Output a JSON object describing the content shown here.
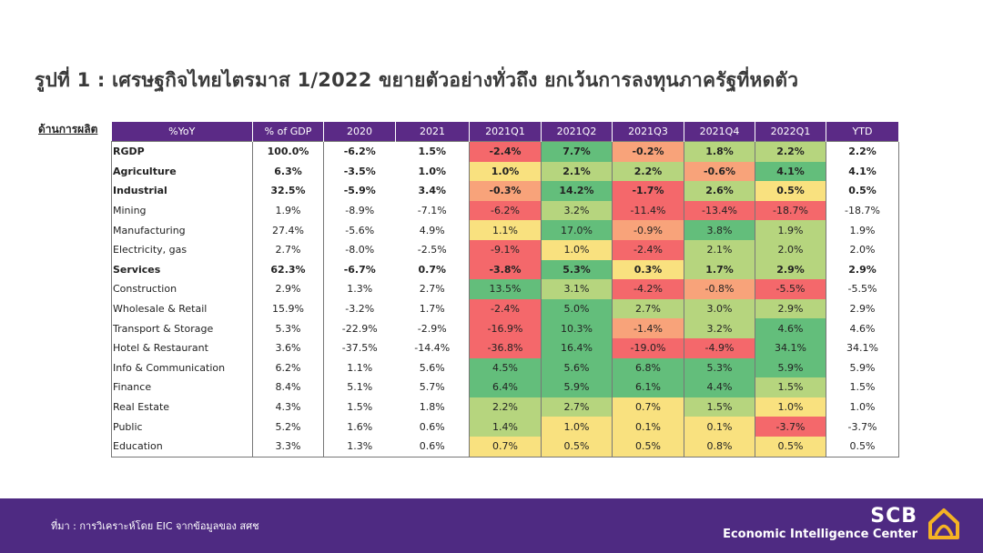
{
  "title": "รูปที่ 1 : เศรษฐกิจไทยไตรมาส 1/2022 ขยายตัวอย่างทั่วถึง ยกเว้นการลงทุนภาครัฐที่หดตัว",
  "side_label": "ด้านการผลิต",
  "columns": [
    "%YoY",
    "% of GDP",
    "2020",
    "2021",
    "2021Q1",
    "2021Q2",
    "2021Q3",
    "2021Q4",
    "2022Q1",
    "YTD"
  ],
  "rows": [
    {
      "label": "RGDP",
      "bold": true,
      "gdp": "100.0%",
      "y2020": "-6.2%",
      "y2021": "1.5%",
      "q": [
        "-2.4%",
        "7.7%",
        "-0.2%",
        "1.8%",
        "2.2%"
      ],
      "ytd": "2.2%"
    },
    {
      "label": "Agriculture",
      "bold": true,
      "gdp": "6.3%",
      "y2020": "-3.5%",
      "y2021": "1.0%",
      "q": [
        "1.0%",
        "2.1%",
        "2.2%",
        "-0.6%",
        "4.1%"
      ],
      "ytd": "4.1%"
    },
    {
      "label": "Industrial",
      "bold": true,
      "gdp": "32.5%",
      "y2020": "-5.9%",
      "y2021": "3.4%",
      "q": [
        "-0.3%",
        "14.2%",
        "-1.7%",
        "2.6%",
        "0.5%"
      ],
      "ytd": "0.5%"
    },
    {
      "label": "Mining",
      "bold": false,
      "gdp": "1.9%",
      "y2020": "-8.9%",
      "y2021": "-7.1%",
      "q": [
        "-6.2%",
        "3.2%",
        "-11.4%",
        "-13.4%",
        "-18.7%"
      ],
      "ytd": "-18.7%"
    },
    {
      "label": "Manufacturing",
      "bold": false,
      "gdp": "27.4%",
      "y2020": "-5.6%",
      "y2021": "4.9%",
      "q": [
        "1.1%",
        "17.0%",
        "-0.9%",
        "3.8%",
        "1.9%"
      ],
      "ytd": "1.9%"
    },
    {
      "label": "Electricity, gas",
      "bold": false,
      "gdp": "2.7%",
      "y2020": "-8.0%",
      "y2021": "-2.5%",
      "q": [
        "-9.1%",
        "1.0%",
        "-2.4%",
        "2.1%",
        "2.0%"
      ],
      "ytd": "2.0%"
    },
    {
      "label": "Services",
      "bold": true,
      "gdp": "62.3%",
      "y2020": "-6.7%",
      "y2021": "0.7%",
      "q": [
        "-3.8%",
        "5.3%",
        "0.3%",
        "1.7%",
        "2.9%"
      ],
      "ytd": "2.9%"
    },
    {
      "label": "Construction",
      "bold": false,
      "gdp": "2.9%",
      "y2020": "1.3%",
      "y2021": "2.7%",
      "q": [
        "13.5%",
        "3.1%",
        "-4.2%",
        "-0.8%",
        "-5.5%"
      ],
      "ytd": "-5.5%"
    },
    {
      "label": "Wholesale & Retail",
      "bold": false,
      "gdp": "15.9%",
      "y2020": "-3.2%",
      "y2021": "1.7%",
      "q": [
        "-2.4%",
        "5.0%",
        "2.7%",
        "3.0%",
        "2.9%"
      ],
      "ytd": "2.9%"
    },
    {
      "label": "Transport & Storage",
      "bold": false,
      "gdp": "5.3%",
      "y2020": "-22.9%",
      "y2021": "-2.9%",
      "q": [
        "-16.9%",
        "10.3%",
        "-1.4%",
        "3.2%",
        "4.6%"
      ],
      "ytd": "4.6%"
    },
    {
      "label": "Hotel & Restaurant",
      "bold": false,
      "gdp": "3.6%",
      "y2020": "-37.5%",
      "y2021": "-14.4%",
      "q": [
        "-36.8%",
        "16.4%",
        "-19.0%",
        "-4.9%",
        "34.1%"
      ],
      "ytd": "34.1%"
    },
    {
      "label": "Info & Communication",
      "bold": false,
      "gdp": "6.2%",
      "y2020": "1.1%",
      "y2021": "5.6%",
      "q": [
        "4.5%",
        "5.6%",
        "6.8%",
        "5.3%",
        "5.9%"
      ],
      "ytd": "5.9%"
    },
    {
      "label": "Finance",
      "bold": false,
      "gdp": "8.4%",
      "y2020": "5.1%",
      "y2021": "5.7%",
      "q": [
        "6.4%",
        "5.9%",
        "6.1%",
        "4.4%",
        "1.5%"
      ],
      "ytd": "1.5%"
    },
    {
      "label": "Real Estate",
      "bold": false,
      "gdp": "4.3%",
      "y2020": "1.5%",
      "y2021": "1.8%",
      "q": [
        "2.2%",
        "2.7%",
        "0.7%",
        "1.5%",
        "1.0%"
      ],
      "ytd": "1.0%"
    },
    {
      "label": "Public",
      "bold": false,
      "gdp": "5.2%",
      "y2020": "1.6%",
      "y2021": "0.6%",
      "q": [
        "1.4%",
        "1.0%",
        "0.1%",
        "0.1%",
        "-3.7%"
      ],
      "ytd": "-3.7%"
    },
    {
      "label": "Education",
      "bold": false,
      "gdp": "3.3%",
      "y2020": "1.3%",
      "y2021": "0.6%",
      "q": [
        "0.7%",
        "0.5%",
        "0.5%",
        "0.8%",
        "0.5%"
      ],
      "ytd": "0.5%"
    }
  ],
  "heat_colors": {
    "neg_strong": "#f4686b",
    "neg": "#f8a37a",
    "neutral": "#f9e17f",
    "pos": "#b6d57e",
    "pos_strong": "#63be7b"
  },
  "footer": {
    "source": "ที่มา : การวิเคราะห์โดย EIC จากข้อมูลของ สศช",
    "brand": "SCB",
    "brand_sub": "Economic Intelligence Center",
    "color": "#4e2a82",
    "logo_color": "#f5b324"
  }
}
